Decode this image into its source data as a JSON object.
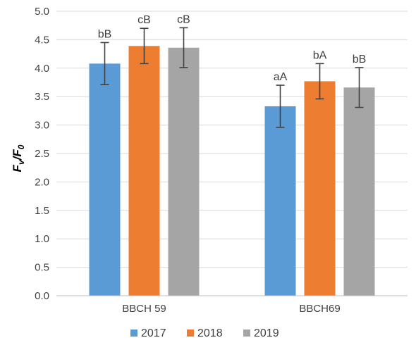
{
  "chart_data": {
    "type": "bar",
    "categories": [
      "BBCH 59",
      "BBCH69"
    ],
    "ylabel_main": "F",
    "ylabel_sub1": "v",
    "ylabel_mid": "/F",
    "ylabel_sub2": "0",
    "ylim": [
      0.0,
      5.0
    ],
    "yticks": [
      "0.0",
      "0.5",
      "1.0",
      "1.5",
      "2.0",
      "2.5",
      "3.0",
      "3.5",
      "4.0",
      "4.5",
      "5.0"
    ],
    "grid": true,
    "legend_position": "bottom",
    "series": [
      {
        "name": "2017",
        "color": "#5b9bd5",
        "values": [
          4.08,
          3.33
        ],
        "error": [
          0.37,
          0.37
        ],
        "labels": [
          "bB",
          "aA"
        ]
      },
      {
        "name": "2018",
        "color": "#ed7d31",
        "values": [
          4.39,
          3.77
        ],
        "error": [
          0.31,
          0.31
        ],
        "labels": [
          "cB",
          "bA"
        ]
      },
      {
        "name": "2019",
        "color": "#a5a5a5",
        "values": [
          4.36,
          3.66
        ],
        "error": [
          0.35,
          0.35
        ],
        "labels": [
          "cB",
          "bB"
        ]
      }
    ]
  }
}
